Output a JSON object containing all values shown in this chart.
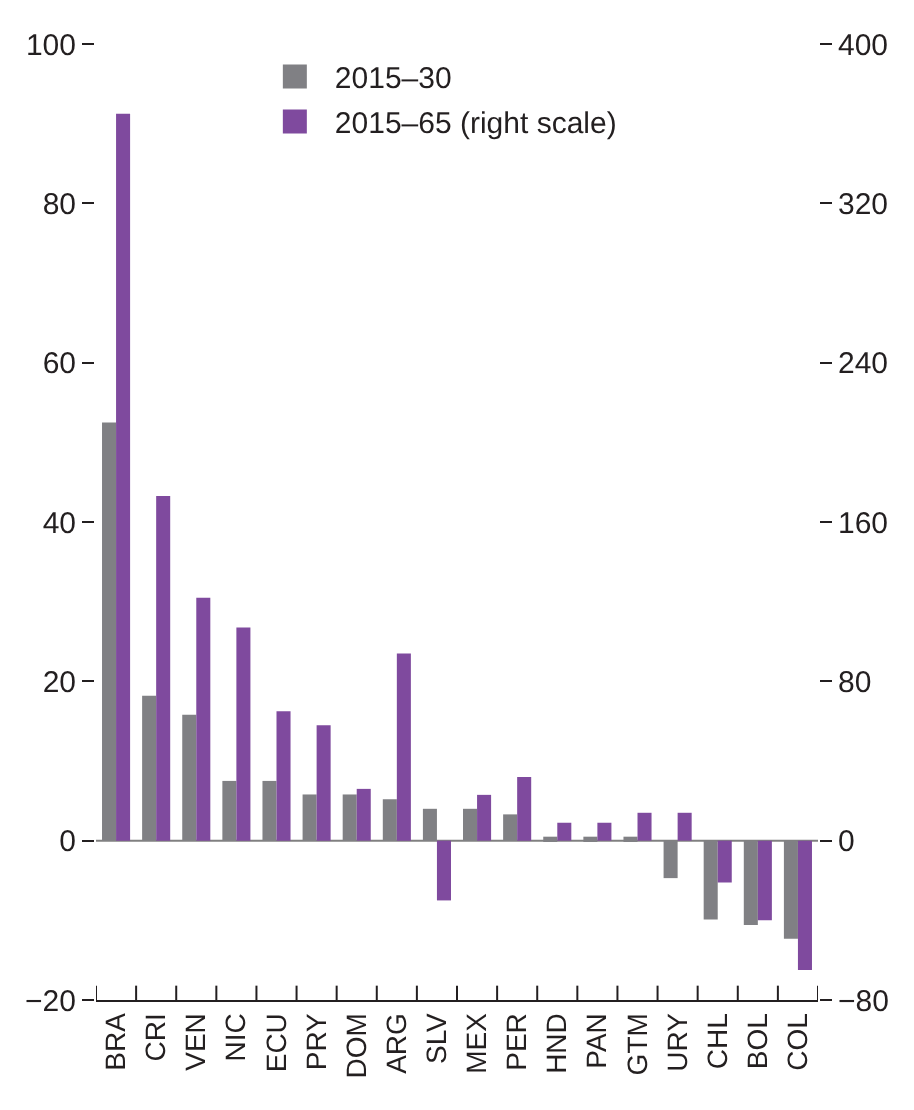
{
  "chart_data": {
    "type": "bar",
    "categories": [
      "BRA",
      "CRI",
      "VEN",
      "NIC",
      "ECU",
      "PRY",
      "DOM",
      "ARG",
      "SLV",
      "MEX",
      "PER",
      "HND",
      "PAN",
      "GTM",
      "URY",
      "CHL",
      "BOL",
      "COL"
    ],
    "series": [
      {
        "name": "2015–30",
        "color": "#808084",
        "values": [
          52.5,
          18.2,
          15.8,
          7.5,
          7.5,
          5.8,
          5.8,
          5.2,
          4.0,
          4.0,
          3.3,
          0.5,
          0.5,
          0.5,
          -4.7,
          -9.9,
          -10.6,
          -12.3
        ]
      },
      {
        "name": "2015–65 (right scale)",
        "color": "#7f4a9e",
        "axis": "y2",
        "values": [
          365,
          173,
          122,
          107,
          65,
          58,
          26,
          94,
          -30,
          23,
          32,
          9,
          9,
          14,
          14,
          -21,
          -40,
          -65
        ]
      }
    ],
    "ylim": [
      -20,
      100
    ],
    "yticks": [
      -20,
      0,
      20,
      40,
      60,
      80,
      100
    ],
    "y2lim": [
      -80,
      400
    ],
    "y2ticks": [
      -80,
      0,
      80,
      160,
      240,
      320,
      400
    ],
    "ref_lines": [
      {
        "axis": "y",
        "value": 0,
        "color": "#808080"
      }
    ],
    "legend": "top"
  }
}
